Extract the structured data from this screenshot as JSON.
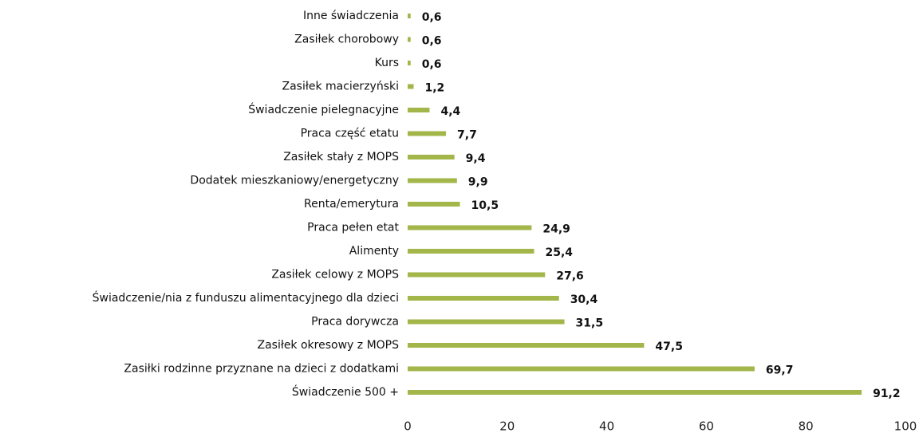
{
  "chart_data": {
    "type": "bar",
    "orientation": "horizontal",
    "categories": [
      "Inne świadczenia",
      "Zasiłek chorobowy",
      "Kurs",
      "Zasiłek macierzyński",
      "Świadczenie pielegnacyjne",
      "Praca część etatu",
      "Zasiłek stały z MOPS",
      "Dodatek mieszkaniowy/energetyczny",
      "Renta/emerytura",
      "Praca pełen etat",
      "Alimenty",
      "Zasiłek celowy z MOPS",
      "Świadczenie/nia z funduszu alimentacyjnego dla dzieci",
      "Praca dorywcza",
      "Zasiłek okresowy z MOPS",
      "Zasiłki rodzinne przyznane na dzieci z dodatkami",
      "Świadczenie 500 +"
    ],
    "values": [
      0.6,
      0.6,
      0.6,
      1.2,
      4.4,
      7.7,
      9.4,
      9.9,
      10.5,
      24.9,
      25.4,
      27.6,
      30.4,
      31.5,
      47.5,
      69.7,
      91.2
    ],
    "value_labels": [
      "0,6",
      "0,6",
      "0,6",
      "1,2",
      "4,4",
      "7,7",
      "9,4",
      "9,9",
      "10,5",
      "24,9",
      "25,4",
      "27,6",
      "30,4",
      "31,5",
      "47,5",
      "69,7",
      "91,2"
    ],
    "color": "#a3b64a",
    "xlim": [
      0,
      100
    ],
    "xticks": [
      0,
      20,
      40,
      60,
      80,
      100
    ]
  }
}
